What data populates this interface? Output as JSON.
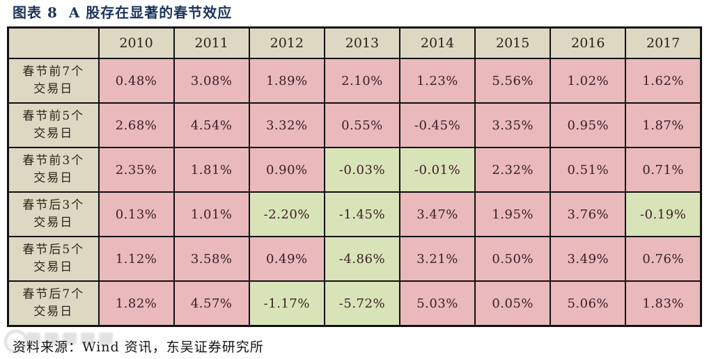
{
  "title": "图表 8  A 股存在显著的春节效应",
  "source": {
    "label": "资料来源：",
    "text": "Wind 资讯，东吴证券研究所"
  },
  "colors": {
    "title_navy": "#1b355a",
    "cell_pink": "#e9b9bc",
    "cell_green": "#d9e3b8",
    "header_beige": "#ddd8c2",
    "border_black": "#0f0f0f"
  },
  "chart_data": {
    "type": "table",
    "title": "图表 8  A 股存在显著的春节效应",
    "columns": [
      "2010",
      "2011",
      "2012",
      "2013",
      "2014",
      "2015",
      "2016",
      "2017"
    ],
    "rows": [
      {
        "label": "春节前7个",
        "label2": "交易日",
        "values": [
          "0.48%",
          "3.08%",
          "1.89%",
          "2.10%",
          "1.23%",
          "5.56%",
          "1.02%",
          "1.62%"
        ],
        "cell_colors": [
          "pink",
          "pink",
          "pink",
          "pink",
          "pink",
          "pink",
          "pink",
          "pink"
        ]
      },
      {
        "label": "春节前5个",
        "label2": "交易日",
        "values": [
          "2.68%",
          "4.54%",
          "3.32%",
          "0.55%",
          "-0.45%",
          "3.35%",
          "0.95%",
          "1.87%"
        ],
        "cell_colors": [
          "pink",
          "pink",
          "pink",
          "pink",
          "pink",
          "pink",
          "pink",
          "pink"
        ]
      },
      {
        "label": "春节前3个",
        "label2": "交易日",
        "values": [
          "2.35%",
          "1.81%",
          "0.90%",
          "-0.03%",
          "-0.01%",
          "2.32%",
          "0.51%",
          "0.71%"
        ],
        "cell_colors": [
          "pink",
          "pink",
          "pink",
          "green",
          "green",
          "pink",
          "pink",
          "pink"
        ]
      },
      {
        "label": "春节后3个",
        "label2": "交易日",
        "values": [
          "0.13%",
          "1.01%",
          "-2.20%",
          "-1.45%",
          "3.47%",
          "1.95%",
          "3.76%",
          "-0.19%"
        ],
        "cell_colors": [
          "pink",
          "pink",
          "green",
          "green",
          "pink",
          "pink",
          "pink",
          "green"
        ]
      },
      {
        "label": "春节后5个",
        "label2": "交易日",
        "values": [
          "1.12%",
          "3.58%",
          "0.49%",
          "-4.86%",
          "3.21%",
          "0.50%",
          "3.49%",
          "0.76%"
        ],
        "cell_colors": [
          "pink",
          "pink",
          "pink",
          "green",
          "pink",
          "pink",
          "pink",
          "pink"
        ]
      },
      {
        "label": "春节后7个",
        "label2": "交易日",
        "values": [
          "1.82%",
          "4.57%",
          "-1.17%",
          "-5.72%",
          "5.03%",
          "0.05%",
          "5.06%",
          "1.83%"
        ],
        "cell_colors": [
          "pink",
          "pink",
          "green",
          "green",
          "pink",
          "pink",
          "pink",
          "pink"
        ]
      }
    ]
  }
}
